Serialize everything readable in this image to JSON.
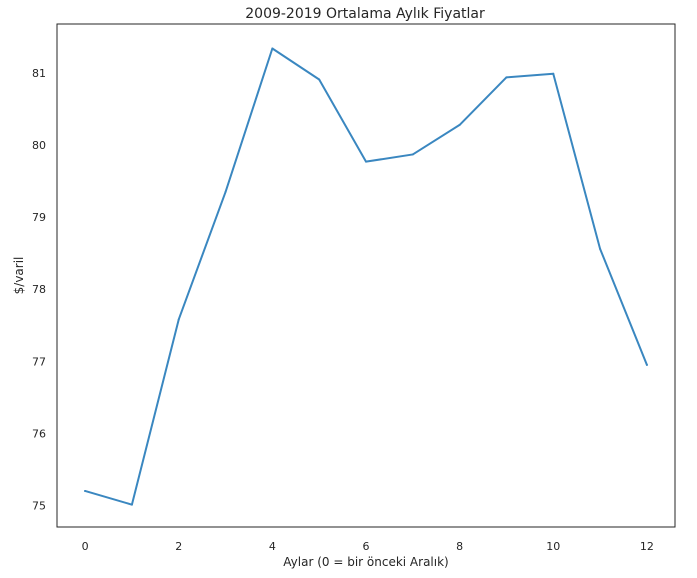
{
  "chart_data": {
    "type": "line",
    "title": "2009-2019 Ortalama Aylık Fiyatlar",
    "xlabel": "Aylar (0 = bir önceki Aralık)",
    "ylabel": "$/varil",
    "xlim": [
      -0.6,
      12.6
    ],
    "ylim": [
      74.7,
      81.68
    ],
    "xticks": [
      0,
      2,
      4,
      6,
      8,
      10,
      12
    ],
    "yticks": [
      75,
      76,
      77,
      78,
      79,
      80,
      81
    ],
    "grid": false,
    "legend": "none",
    "line_color": "#3a87c0",
    "x": [
      0,
      1,
      2,
      3,
      4,
      5,
      6,
      7,
      8,
      9,
      10,
      11,
      12
    ],
    "series": [
      {
        "values": [
          75.2,
          75.01,
          77.58,
          79.35,
          81.34,
          80.91,
          79.77,
          79.87,
          80.28,
          80.94,
          80.99,
          78.56,
          76.95
        ]
      }
    ]
  }
}
